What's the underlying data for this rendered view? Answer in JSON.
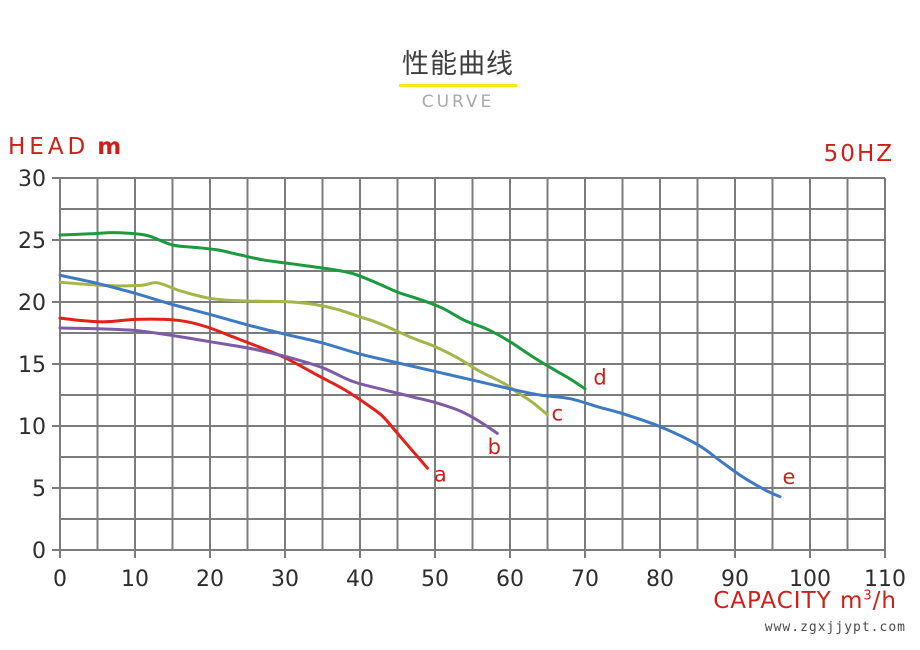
{
  "page": {
    "title": "性能曲线",
    "subtitle": "CURVE",
    "watermark": "www.zgxjjypt.com"
  },
  "axes": {
    "y_label": "HEAD",
    "y_unit": "m",
    "freq": "50HZ",
    "x_label": "CAPACITY",
    "x_unit_base": "m",
    "x_unit_sup": "3",
    "x_unit_rest": "/h"
  },
  "colors": {
    "accent_red": "#ce2019",
    "grid": "#7c7c7c",
    "tick_text": "#2d2d2d",
    "underline_yellow": "#f6e71a",
    "subtitle_gray": "#a9a9a9",
    "watermark_gray": "#4a4a4a",
    "title_dark": "#3e3e3e"
  },
  "chart_data": {
    "type": "line",
    "title": "性能曲线 (CURVE)",
    "xlabel": "CAPACITY m³/h",
    "ylabel": "HEAD m",
    "frequency": "50HZ",
    "xlim": [
      0,
      110
    ],
    "ylim": [
      0,
      30
    ],
    "x_major_ticks": [
      0,
      10,
      20,
      30,
      40,
      50,
      60,
      70,
      80,
      90,
      100,
      110
    ],
    "y_major_ticks": [
      0,
      5,
      10,
      15,
      20,
      25,
      30
    ],
    "x_grid_step": 5,
    "y_grid_step": 2.5,
    "grid": true,
    "legend_position": "inline-labels",
    "series": [
      {
        "name": "a",
        "color": "#e32119",
        "label_at": [
          50.7,
          6.1
        ],
        "points": [
          [
            0,
            18.7
          ],
          [
            3,
            18.5
          ],
          [
            6,
            18.4
          ],
          [
            10,
            18.6
          ],
          [
            14,
            18.6
          ],
          [
            17,
            18.4
          ],
          [
            20,
            17.9
          ],
          [
            23,
            17.2
          ],
          [
            26,
            16.5
          ],
          [
            30,
            15.5
          ],
          [
            34,
            14.2
          ],
          [
            38,
            12.9
          ],
          [
            41,
            11.7
          ],
          [
            43,
            10.8
          ],
          [
            45,
            9.4
          ],
          [
            47,
            8.0
          ],
          [
            49,
            6.6
          ]
        ]
      },
      {
        "name": "b",
        "color": "#7d5ba6",
        "label_at": [
          57.9,
          8.3
        ],
        "points": [
          [
            0,
            17.9
          ],
          [
            5,
            17.85
          ],
          [
            10,
            17.7
          ],
          [
            15,
            17.3
          ],
          [
            20,
            16.8
          ],
          [
            25,
            16.3
          ],
          [
            28,
            15.9
          ],
          [
            31,
            15.45
          ],
          [
            35,
            14.7
          ],
          [
            39,
            13.6
          ],
          [
            43,
            12.95
          ],
          [
            47,
            12.35
          ],
          [
            50,
            11.9
          ],
          [
            53,
            11.3
          ],
          [
            55,
            10.7
          ],
          [
            57,
            9.95
          ],
          [
            58.3,
            9.4
          ]
        ]
      },
      {
        "name": "c",
        "color": "#a6b548",
        "label_at": [
          66.3,
          11.0
        ],
        "points": [
          [
            0,
            21.6
          ],
          [
            4,
            21.4
          ],
          [
            8,
            21.3
          ],
          [
            11,
            21.35
          ],
          [
            13,
            21.55
          ],
          [
            16,
            20.9
          ],
          [
            20,
            20.3
          ],
          [
            24,
            20.1
          ],
          [
            28,
            20.05
          ],
          [
            31,
            20.0
          ],
          [
            34,
            19.8
          ],
          [
            37,
            19.4
          ],
          [
            40,
            18.8
          ],
          [
            42,
            18.4
          ],
          [
            44,
            17.9
          ],
          [
            47,
            17.1
          ],
          [
            50,
            16.4
          ],
          [
            53,
            15.5
          ],
          [
            56,
            14.4
          ],
          [
            59,
            13.5
          ],
          [
            61,
            12.7
          ],
          [
            63,
            11.9
          ],
          [
            65,
            10.9
          ]
        ]
      },
      {
        "name": "d",
        "color": "#1b9a3e",
        "label_at": [
          72.0,
          13.9
        ],
        "points": [
          [
            0,
            25.4
          ],
          [
            4,
            25.5
          ],
          [
            7,
            25.6
          ],
          [
            10,
            25.5
          ],
          [
            12,
            25.3
          ],
          [
            15,
            24.6
          ],
          [
            18,
            24.4
          ],
          [
            21,
            24.2
          ],
          [
            24,
            23.8
          ],
          [
            27,
            23.4
          ],
          [
            30,
            23.15
          ],
          [
            33,
            22.9
          ],
          [
            36,
            22.65
          ],
          [
            39,
            22.3
          ],
          [
            42,
            21.6
          ],
          [
            45,
            20.8
          ],
          [
            48,
            20.2
          ],
          [
            51,
            19.5
          ],
          [
            54,
            18.5
          ],
          [
            57,
            17.8
          ],
          [
            60,
            16.8
          ],
          [
            63,
            15.6
          ],
          [
            66,
            14.5
          ],
          [
            68,
            13.8
          ],
          [
            70,
            13.0
          ]
        ]
      },
      {
        "name": "e",
        "color": "#3d7ac2",
        "label_at": [
          97.2,
          5.9
        ],
        "points": [
          [
            0,
            22.15
          ],
          [
            5,
            21.5
          ],
          [
            10,
            20.7
          ],
          [
            15,
            19.8
          ],
          [
            20,
            19.0
          ],
          [
            25,
            18.15
          ],
          [
            30,
            17.4
          ],
          [
            35,
            16.7
          ],
          [
            40,
            15.8
          ],
          [
            45,
            15.1
          ],
          [
            50,
            14.4
          ],
          [
            55,
            13.7
          ],
          [
            60,
            13.0
          ],
          [
            64,
            12.5
          ],
          [
            68,
            12.2
          ],
          [
            72,
            11.5
          ],
          [
            75,
            11.0
          ],
          [
            80,
            9.95
          ],
          [
            85,
            8.5
          ],
          [
            88,
            7.2
          ],
          [
            91,
            5.9
          ],
          [
            94,
            4.85
          ],
          [
            96,
            4.3
          ]
        ]
      }
    ]
  }
}
